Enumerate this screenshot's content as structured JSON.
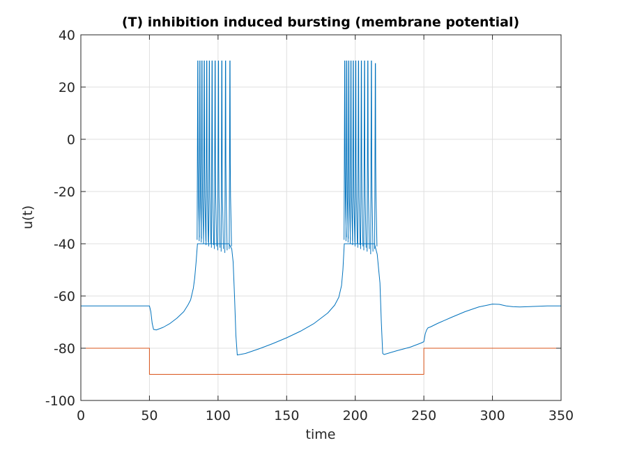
{
  "chart_data": {
    "type": "line",
    "title": "(T) inhibition induced bursting (membrane potential)",
    "xlabel": "time",
    "ylabel": "u(t)",
    "xlim": [
      0,
      350
    ],
    "ylim": [
      -100,
      40
    ],
    "xticks": [
      0,
      50,
      100,
      150,
      200,
      250,
      300,
      350
    ],
    "yticks": [
      -100,
      -80,
      -60,
      -40,
      -20,
      0,
      20,
      40
    ],
    "grid": true,
    "legend": "none",
    "series": [
      {
        "color": "#0072BD",
        "x": [
          0,
          10,
          20,
          30,
          40,
          48,
          50,
          51,
          52,
          53,
          55,
          60,
          65,
          70,
          75,
          78,
          80,
          82,
          83,
          84,
          85,
          108,
          110,
          111,
          112,
          113,
          114,
          120,
          130,
          140,
          150,
          160,
          170,
          180,
          185,
          188,
          190,
          191,
          192,
          214,
          216,
          218,
          219,
          220,
          221,
          230,
          240,
          248,
          250,
          251,
          252,
          253,
          255,
          260,
          270,
          280,
          290,
          300,
          305,
          310,
          315,
          320,
          330,
          340,
          350
        ],
        "y": [
          -63.8,
          -63.8,
          -63.8,
          -63.8,
          -63.8,
          -63.8,
          -63.8,
          -66,
          -70.5,
          -72.8,
          -73,
          -72,
          -70.5,
          -68.5,
          -66,
          -63.5,
          -61.5,
          -57,
          -53,
          -47,
          -40,
          -40,
          -42,
          -47,
          -60,
          -75,
          -82.6,
          -82,
          -80.2,
          -78.2,
          -76,
          -73.5,
          -70.5,
          -66.5,
          -63.5,
          -60.5,
          -56,
          -50,
          -40,
          -40,
          -44,
          -55,
          -70,
          -82,
          -82.4,
          -81,
          -79.6,
          -78,
          -77.5,
          -74.5,
          -73,
          -72.2,
          -71.8,
          -70.5,
          -68.2,
          -66,
          -64.2,
          -63.1,
          -63.2,
          -63.8,
          -64.1,
          -64.2,
          -64,
          -63.8,
          -63.8
        ]
      },
      {
        "color": "#D95319",
        "x": [
          0,
          50,
          50,
          250,
          250,
          350
        ],
        "y": [
          -80,
          -80,
          -90,
          -90,
          -80,
          -80
        ]
      }
    ],
    "bursts": [
      {
        "color": "#0072BD",
        "spikes": [
          {
            "x": 85.2,
            "trough": -38.5,
            "peak": 30
          },
          {
            "x": 86.7,
            "trough": -39.0,
            "peak": 30
          },
          {
            "x": 88.2,
            "trough": -39.5,
            "peak": 30
          },
          {
            "x": 89.9,
            "trough": -40.0,
            "peak": 30
          },
          {
            "x": 91.7,
            "trough": -40.5,
            "peak": 30
          },
          {
            "x": 93.6,
            "trough": -41.0,
            "peak": 30
          },
          {
            "x": 95.6,
            "trough": -41.5,
            "peak": 30
          },
          {
            "x": 97.8,
            "trough": -42.0,
            "peak": 30
          },
          {
            "x": 100.2,
            "trough": -42.5,
            "peak": 30
          },
          {
            "x": 102.7,
            "trough": -43.0,
            "peak": 30
          },
          {
            "x": 105.4,
            "trough": -43.5,
            "peak": 30
          },
          {
            "x": 108.6,
            "trough": -42.0,
            "peak": 30
          }
        ]
      },
      {
        "color": "#0072BD",
        "spikes": [
          {
            "x": 192.3,
            "trough": -38.5,
            "peak": 30
          },
          {
            "x": 193.7,
            "trough": -39.0,
            "peak": 30
          },
          {
            "x": 195.2,
            "trough": -39.5,
            "peak": 30
          },
          {
            "x": 196.8,
            "trough": -40.0,
            "peak": 30
          },
          {
            "x": 198.5,
            "trough": -40.5,
            "peak": 30
          },
          {
            "x": 200.3,
            "trough": -41.0,
            "peak": 30
          },
          {
            "x": 202.3,
            "trough": -41.5,
            "peak": 30
          },
          {
            "x": 204.4,
            "trough": -42.0,
            "peak": 30
          },
          {
            "x": 206.7,
            "trough": -42.5,
            "peak": 30
          },
          {
            "x": 209.1,
            "trough": -43.0,
            "peak": 30
          },
          {
            "x": 211.7,
            "trough": -44.0,
            "peak": 30
          },
          {
            "x": 214.6,
            "trough": -42.0,
            "peak": 29
          }
        ]
      }
    ]
  }
}
